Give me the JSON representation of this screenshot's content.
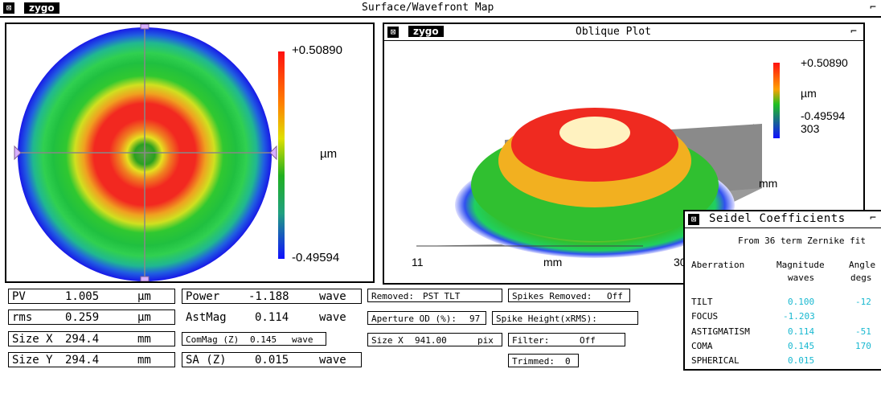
{
  "window": {
    "title": "Surface/Wavefront Map",
    "logo": "zygo"
  },
  "surface_map": {
    "colorbar": {
      "max": "+0.50890",
      "unit": "µm",
      "min": "-0.49594"
    }
  },
  "oblique": {
    "title": "Oblique Plot",
    "logo": "zygo",
    "colorbar": {
      "max": "+0.50890",
      "unit": "µm",
      "min": "-0.49594",
      "extra": "303"
    },
    "axis": {
      "unit_right": "mm",
      "unit_bottom": "mm",
      "tick_left": "11",
      "tick_right": "30"
    }
  },
  "results": {
    "pv": {
      "label": "PV",
      "value": "1.005",
      "unit": "µm"
    },
    "rms": {
      "label": "rms",
      "value": "0.259",
      "unit": "µm"
    },
    "sizex": {
      "label": "Size X",
      "value": "294.4",
      "unit": "mm"
    },
    "sizey": {
      "label": "Size Y",
      "value": "294.4",
      "unit": "mm"
    },
    "power": {
      "label": "Power",
      "value": "-1.188",
      "unit": "wave"
    },
    "astmag": {
      "label": "AstMag",
      "value": "0.114",
      "unit": "wave"
    },
    "commag": {
      "label": "ComMag (Z)",
      "value": "0.145",
      "unit": "wave"
    },
    "sa": {
      "label": "SA (Z)",
      "value": "0.015",
      "unit": "wave"
    }
  },
  "settings": {
    "removed": {
      "label": "Removed:",
      "value": "PST TLT"
    },
    "spikes_removed": {
      "label": "Spikes Removed:",
      "value": "Off"
    },
    "aperture": {
      "label": "Aperture OD (%):",
      "value": "97"
    },
    "spike_height": {
      "label": "Spike Height(xRMS):",
      "value": ""
    },
    "size_x": {
      "label": "Size X",
      "value": "941.00",
      "unit": "pix"
    },
    "filter": {
      "label": "Filter:",
      "value": "Off"
    },
    "trimmed": {
      "label": "Trimmed:",
      "value": "0"
    }
  },
  "seidel": {
    "title": "Seidel Coefficients",
    "subtitle": "From 36 term Zernike fit",
    "headers": {
      "aberration": "Aberration",
      "magnitude": "Magnitude",
      "magnitude_unit": "waves",
      "angle": "Angle",
      "angle_unit": "degs"
    },
    "rows": [
      {
        "name": "TILT",
        "magnitude": "0.100",
        "angle": "-12"
      },
      {
        "name": "FOCUS",
        "magnitude": "-1.203",
        "angle": ""
      },
      {
        "name": "ASTIGMATISM",
        "magnitude": "0.114",
        "angle": "-51"
      },
      {
        "name": "COMA",
        "magnitude": "0.145",
        "angle": "170"
      },
      {
        "name": "SPHERICAL",
        "magnitude": "0.015",
        "angle": ""
      }
    ]
  }
}
